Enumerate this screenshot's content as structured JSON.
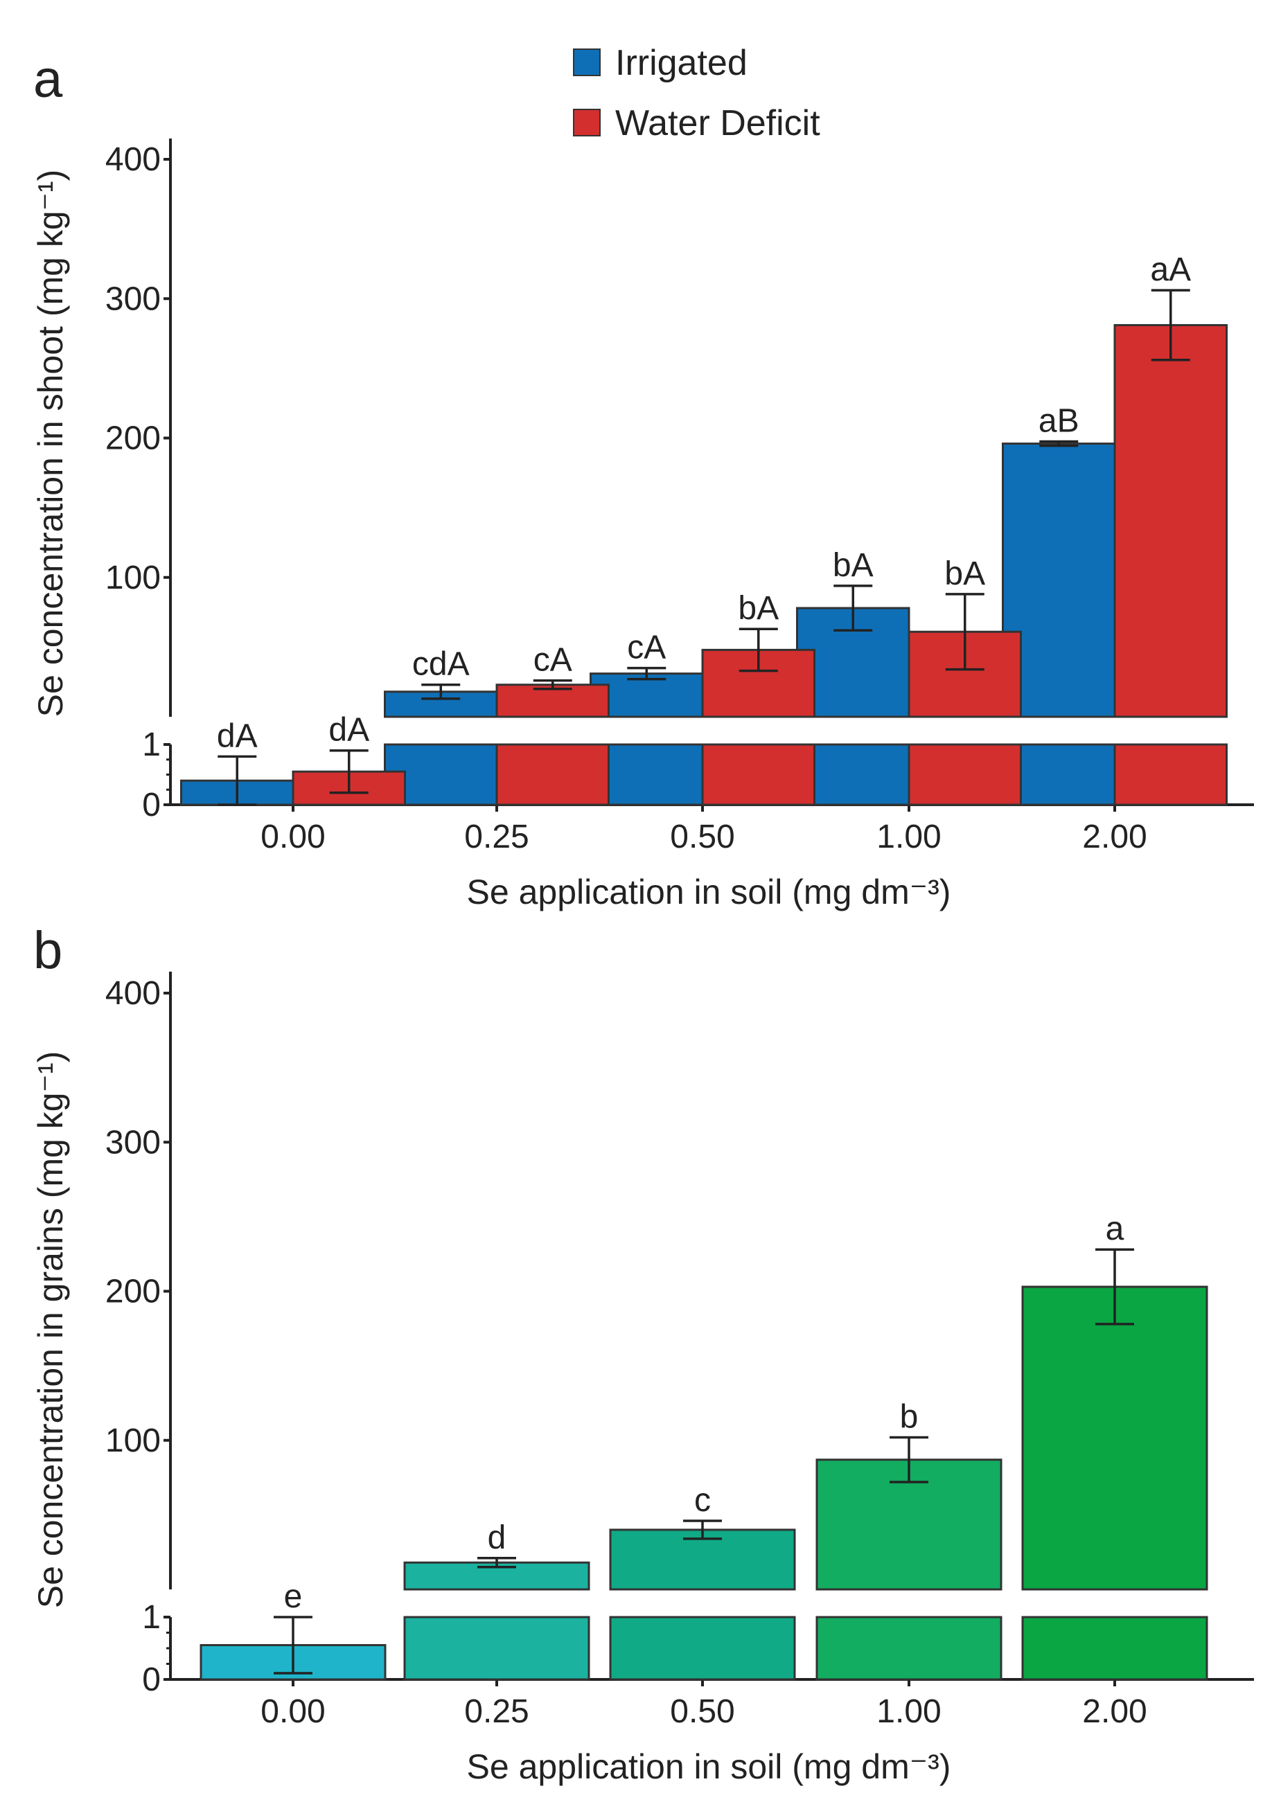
{
  "legend": {
    "items": [
      {
        "label": "Irrigated",
        "color": "#0f6fb6"
      },
      {
        "label": "Water Deficit",
        "color": "#d32f2f"
      }
    ]
  },
  "chart_data": [
    {
      "panel": "a",
      "type": "bar",
      "categories": [
        "0.00",
        "0.25",
        "0.50",
        "1.00",
        "2.00"
      ],
      "xlabel": "Se application in soil (mg dm⁻³)",
      "ylabel": "Se concentration in shoot (mg kg⁻¹)",
      "axis_break": {
        "lower_range": [
          0,
          1
        ],
        "upper_range": [
          0,
          400
        ]
      },
      "lower_ticks": [
        "0",
        "1"
      ],
      "upper_ticks": [
        "100",
        "200",
        "300",
        "400"
      ],
      "series": [
        {
          "name": "Irrigated",
          "color": "#0f6fb6",
          "values": [
            0.4,
            18,
            31,
            78,
            196
          ],
          "errors": [
            0.4,
            5,
            4,
            16,
            1.5
          ],
          "labels": [
            "dA",
            "cdA",
            "cA",
            "bA",
            "aB"
          ]
        },
        {
          "name": "Water Deficit",
          "color": "#d32f2f",
          "values": [
            0.55,
            23,
            48,
            61,
            281
          ],
          "errors": [
            0.35,
            3,
            15,
            27,
            25
          ],
          "labels": [
            "dA",
            "cA",
            "bA",
            "bA",
            "aA"
          ]
        }
      ]
    },
    {
      "panel": "b",
      "type": "bar",
      "categories": [
        "0.00",
        "0.25",
        "0.50",
        "1.00",
        "2.00"
      ],
      "xlabel": "Se application in soil (mg dm⁻³)",
      "ylabel": "Se concentration in grains (mg kg⁻¹)",
      "axis_break": {
        "lower_range": [
          0,
          1
        ],
        "upper_range": [
          0,
          400
        ]
      },
      "lower_ticks": [
        "0",
        "1"
      ],
      "upper_ticks": [
        "100",
        "200",
        "300",
        "400"
      ],
      "series": [
        {
          "name": "Grains",
          "colors": [
            "#1fb4c9",
            "#1bb2a0",
            "#10aa86",
            "#12ad60",
            "#0aa644"
          ],
          "values": [
            0.55,
            18,
            40,
            87,
            203
          ],
          "errors": [
            0.45,
            3,
            6,
            15,
            25
          ],
          "labels": [
            "e",
            "d",
            "c",
            "b",
            "a"
          ]
        }
      ]
    }
  ]
}
